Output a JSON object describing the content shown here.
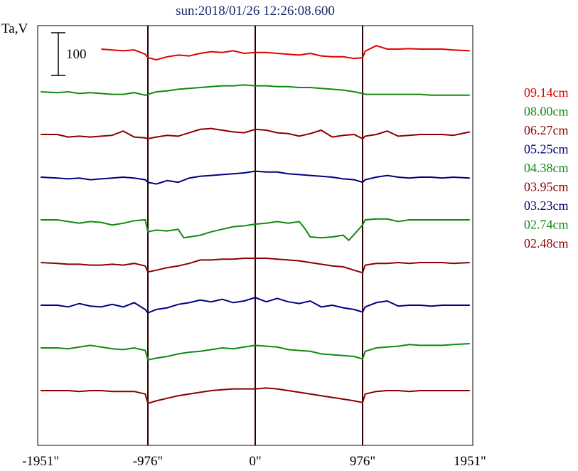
{
  "chart_data": {
    "type": "line",
    "title": "sun:2018/01/26 12:26:08.600",
    "ylabel": "Ta,V",
    "xlim": [
      -1951,
      1951
    ],
    "x_ticks": [
      {
        "value": -1951,
        "label": "-1951\""
      },
      {
        "value": -976,
        "label": "-976\""
      },
      {
        "value": 0,
        "label": "0\""
      },
      {
        "value": 976,
        "label": "976\""
      },
      {
        "value": 1951,
        "label": "1951\""
      }
    ],
    "vertical_markers": [
      -976,
      0,
      976
    ],
    "scale_bar": {
      "label": "100",
      "value": 100
    },
    "grid": false,
    "legend_position": "right",
    "series": [
      {
        "name": "09.14cm",
        "color": "#e00000",
        "offset": 0,
        "x": [
          -1400,
          -1300,
          -1200,
          -1100,
          -1000,
          -976,
          -900,
          -800,
          -700,
          -600,
          -500,
          -400,
          -300,
          -200,
          -100,
          0,
          100,
          200,
          300,
          400,
          500,
          600,
          700,
          800,
          900,
          976,
          1000,
          1100,
          1200,
          1300,
          1400,
          1500,
          1600,
          1700,
          1800,
          1951
        ],
        "y": [
          0,
          -2,
          -4,
          -2,
          -12,
          -20,
          -25,
          -18,
          -14,
          -16,
          -10,
          -6,
          -8,
          -4,
          -10,
          -8,
          -8,
          -10,
          -12,
          -14,
          -10,
          -16,
          -18,
          -18,
          -22,
          -20,
          -5,
          8,
          0,
          0,
          1,
          0,
          0,
          0,
          -2,
          -4
        ]
      },
      {
        "name": "08.00cm",
        "color": "#118a11",
        "offset": 0,
        "x": [
          -1951,
          -1800,
          -1700,
          -1600,
          -1500,
          -1400,
          -1300,
          -1200,
          -1100,
          -1000,
          -976,
          -900,
          -800,
          -700,
          -600,
          -500,
          -400,
          -300,
          -200,
          -100,
          0,
          100,
          200,
          300,
          400,
          500,
          600,
          700,
          800,
          900,
          976,
          1000,
          1100,
          1200,
          1300,
          1400,
          1500,
          1600,
          1700,
          1800,
          1951
        ],
        "y": [
          0,
          -2,
          0,
          -4,
          -2,
          -4,
          -6,
          -6,
          -2,
          -8,
          -6,
          0,
          2,
          6,
          8,
          10,
          12,
          14,
          14,
          16,
          14,
          14,
          12,
          12,
          10,
          10,
          8,
          6,
          4,
          0,
          -4,
          -6,
          -6,
          -6,
          -6,
          -6,
          -6,
          -8,
          -8,
          -8,
          -8
        ]
      },
      {
        "name": "06.27cm",
        "color": "#8b0000",
        "offset": 0,
        "x": [
          -1951,
          -1800,
          -1700,
          -1600,
          -1500,
          -1400,
          -1300,
          -1200,
          -1100,
          -1000,
          -976,
          -900,
          -800,
          -700,
          -600,
          -500,
          -400,
          -300,
          -200,
          -100,
          0,
          100,
          200,
          300,
          400,
          500,
          600,
          700,
          800,
          900,
          976,
          1000,
          1100,
          1200,
          1300,
          1400,
          1500,
          1600,
          1700,
          1800,
          1951
        ],
        "y": [
          0,
          0,
          -6,
          -4,
          -6,
          -4,
          -2,
          8,
          -6,
          -8,
          -10,
          -6,
          -2,
          -4,
          4,
          12,
          14,
          10,
          6,
          4,
          12,
          10,
          4,
          2,
          -4,
          2,
          10,
          -6,
          -2,
          0,
          -10,
          -4,
          0,
          8,
          -4,
          -2,
          0,
          0,
          0,
          -2,
          6
        ]
      },
      {
        "name": "05.25cm",
        "color": "#000080",
        "offset": 0,
        "x": [
          -1951,
          -1800,
          -1700,
          -1600,
          -1500,
          -1400,
          -1300,
          -1200,
          -1100,
          -1000,
          -976,
          -900,
          -800,
          -700,
          -600,
          -500,
          -400,
          -300,
          -200,
          -100,
          0,
          100,
          200,
          300,
          400,
          500,
          600,
          700,
          800,
          900,
          976,
          1000,
          1100,
          1200,
          1300,
          1400,
          1500,
          1600,
          1700,
          1800,
          1951
        ],
        "y": [
          0,
          -2,
          -4,
          -2,
          -6,
          -4,
          -2,
          0,
          -2,
          -6,
          -12,
          -16,
          -8,
          -12,
          -2,
          2,
          4,
          6,
          8,
          10,
          14,
          12,
          12,
          8,
          6,
          4,
          2,
          0,
          -4,
          -6,
          -12,
          -6,
          0,
          4,
          0,
          -2,
          0,
          0,
          -2,
          0,
          -2
        ]
      },
      {
        "name": "04.38cm",
        "color": "#118a11",
        "offset": 0,
        "x": [
          -1951,
          -1800,
          -1700,
          -1600,
          -1500,
          -1400,
          -1300,
          -1200,
          -1100,
          -1000,
          -976,
          -900,
          -800,
          -700,
          -650,
          -600,
          -500,
          -400,
          -300,
          -200,
          -100,
          0,
          100,
          200,
          300,
          400,
          450,
          500,
          600,
          700,
          800,
          850,
          900,
          976,
          1000,
          1100,
          1200,
          1300,
          1400,
          1500,
          1600,
          1700,
          1800,
          1951
        ],
        "y": [
          0,
          0,
          -4,
          -8,
          -4,
          -6,
          -12,
          -8,
          -2,
          0,
          -28,
          -24,
          -26,
          -22,
          -42,
          -40,
          -36,
          -28,
          -22,
          -16,
          -14,
          -10,
          -8,
          -4,
          -8,
          -4,
          -20,
          -40,
          -42,
          -40,
          -36,
          -48,
          -34,
          -12,
          0,
          2,
          2,
          -4,
          0,
          0,
          0,
          0,
          0,
          0
        ]
      },
      {
        "name": "03.95cm",
        "color": "#8b0000",
        "offset": 0,
        "x": [
          -1951,
          -1800,
          -1700,
          -1600,
          -1500,
          -1400,
          -1300,
          -1200,
          -1100,
          -1000,
          -976,
          -900,
          -800,
          -700,
          -600,
          -500,
          -400,
          -300,
          -200,
          -100,
          0,
          100,
          200,
          300,
          400,
          500,
          600,
          700,
          800,
          900,
          976,
          1000,
          1100,
          1200,
          1300,
          1400,
          1500,
          1600,
          1700,
          1800,
          1951
        ],
        "y": [
          0,
          -2,
          -4,
          -4,
          -6,
          -6,
          -4,
          -6,
          -2,
          -8,
          -22,
          -18,
          -12,
          -8,
          -2,
          6,
          6,
          8,
          8,
          10,
          10,
          10,
          8,
          6,
          4,
          0,
          -4,
          -8,
          -10,
          -18,
          -24,
          -6,
          -2,
          -2,
          0,
          -2,
          0,
          0,
          0,
          -2,
          0
        ]
      },
      {
        "name": "03.23cm",
        "color": "#000080",
        "offset": 0,
        "x": [
          -1951,
          -1800,
          -1700,
          -1600,
          -1500,
          -1400,
          -1300,
          -1200,
          -1100,
          -1000,
          -976,
          -900,
          -800,
          -700,
          -600,
          -500,
          -400,
          -300,
          -200,
          -100,
          0,
          100,
          200,
          300,
          400,
          500,
          600,
          700,
          800,
          900,
          976,
          1000,
          1100,
          1200,
          1300,
          1400,
          1500,
          1600,
          1700,
          1800,
          1951
        ],
        "y": [
          0,
          0,
          -4,
          4,
          -2,
          -4,
          2,
          -4,
          6,
          -10,
          -18,
          -10,
          -6,
          2,
          6,
          12,
          8,
          14,
          6,
          10,
          18,
          8,
          16,
          8,
          4,
          10,
          -4,
          0,
          -6,
          -10,
          -16,
          -4,
          6,
          10,
          -2,
          0,
          0,
          -2,
          0,
          0,
          0
        ]
      },
      {
        "name": "02.74cm",
        "color": "#118a11",
        "offset": 0,
        "x": [
          -1951,
          -1800,
          -1700,
          -1600,
          -1500,
          -1400,
          -1300,
          -1200,
          -1100,
          -1000,
          -976,
          -900,
          -800,
          -700,
          -600,
          -500,
          -400,
          -300,
          -200,
          -100,
          0,
          100,
          200,
          300,
          400,
          500,
          600,
          700,
          800,
          900,
          976,
          1000,
          1100,
          1200,
          1300,
          1400,
          1500,
          1600,
          1700,
          1800,
          1951
        ],
        "y": [
          0,
          0,
          -2,
          2,
          6,
          2,
          -2,
          -4,
          0,
          -6,
          -28,
          -24,
          -20,
          -14,
          -10,
          -8,
          -4,
          0,
          -2,
          2,
          6,
          4,
          2,
          -4,
          -6,
          -8,
          -14,
          -16,
          -18,
          -20,
          -26,
          -8,
          0,
          2,
          4,
          8,
          6,
          6,
          6,
          8,
          10
        ]
      },
      {
        "name": "02.48cm",
        "color": "#8b0000",
        "offset": 0,
        "x": [
          -1951,
          -1800,
          -1700,
          -1600,
          -1500,
          -1400,
          -1300,
          -1200,
          -1100,
          -1000,
          -976,
          -900,
          -800,
          -700,
          -600,
          -500,
          -400,
          -300,
          -200,
          -100,
          0,
          100,
          200,
          300,
          400,
          500,
          600,
          700,
          800,
          900,
          976,
          1000,
          1100,
          1200,
          1300,
          1400,
          1500,
          1600,
          1700,
          1800,
          1951
        ],
        "y": [
          0,
          0,
          0,
          -2,
          0,
          0,
          -2,
          -2,
          -2,
          -8,
          -30,
          -24,
          -18,
          -12,
          -8,
          -4,
          0,
          2,
          4,
          4,
          4,
          6,
          4,
          0,
          -4,
          -8,
          -12,
          -16,
          -20,
          -24,
          -28,
          -8,
          -2,
          0,
          0,
          -2,
          0,
          0,
          0,
          0,
          0
        ]
      }
    ]
  }
}
